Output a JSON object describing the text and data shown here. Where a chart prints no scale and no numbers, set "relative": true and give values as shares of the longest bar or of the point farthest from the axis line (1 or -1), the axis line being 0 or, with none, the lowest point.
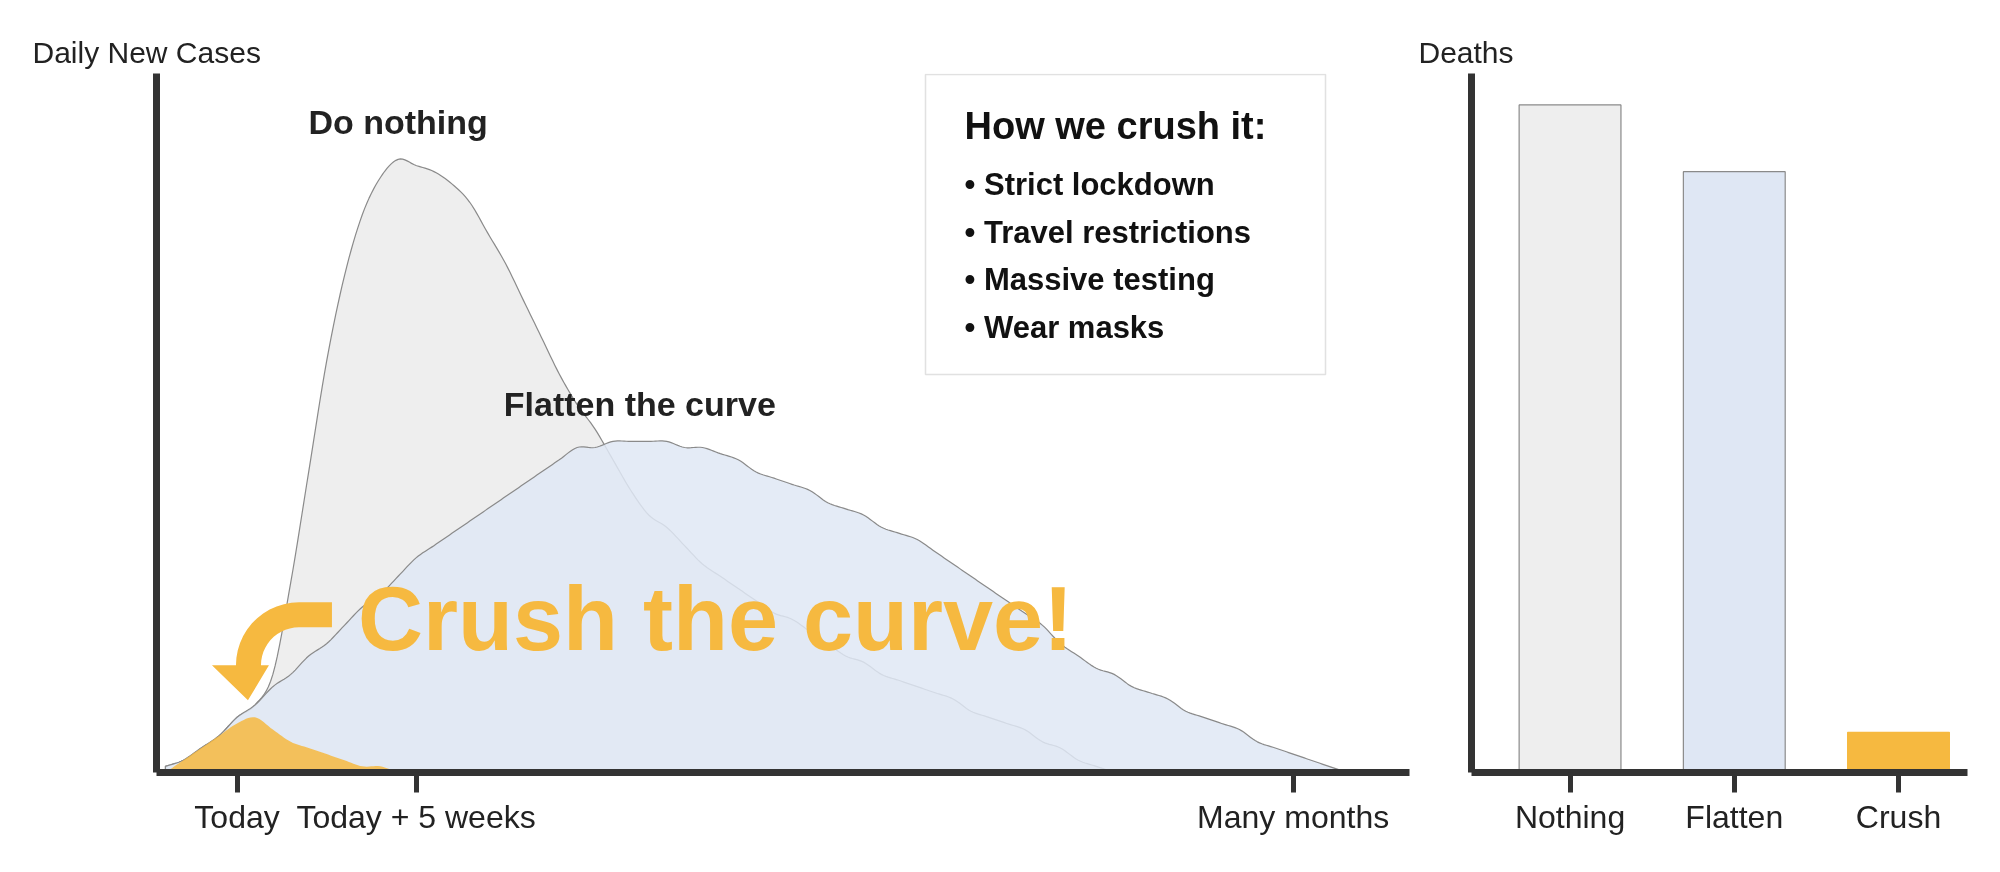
{
  "chart_data": [
    {
      "type": "area",
      "ylabel": "Daily New Cases",
      "relative": true,
      "categories": [
        null,
        null,
        null,
        null,
        "Today",
        null,
        null,
        null,
        null,
        null,
        null,
        null,
        null,
        null,
        "Today + 5 weeks",
        null,
        null,
        null,
        null,
        null,
        null,
        null,
        null,
        null,
        null,
        null,
        null,
        null,
        null,
        null,
        null,
        null,
        null,
        null,
        null,
        null,
        null,
        null,
        null,
        null,
        null,
        null,
        null,
        null,
        null,
        null,
        null,
        null,
        null,
        null,
        null,
        null,
        null,
        null,
        null,
        null,
        null,
        null,
        null,
        null,
        null,
        null,
        null,
        "Many months",
        null,
        null,
        null,
        null,
        null,
        null
      ],
      "series": [
        {
          "name": "Do nothing",
          "color": "#eeeeee",
          "values": [
            0.01,
            0.02,
            0.04,
            0.06,
            0.09,
            0.11,
            0.16,
            0.31,
            0.49,
            0.67,
            0.81,
            0.91,
            0.97,
            1,
            0.99,
            0.98,
            0.96,
            0.93,
            0.88,
            0.83,
            0.77,
            0.71,
            0.65,
            0.6,
            0.56,
            0.51,
            0.46,
            0.42,
            0.4,
            0.37,
            0.34,
            0.32,
            0.3,
            0.28,
            0.26,
            0.25,
            0.23,
            0.21,
            0.19,
            0.18,
            0.16,
            0.15,
            0.14,
            0.13,
            0.12,
            0.1,
            0.09,
            0.08,
            0.07,
            0.05,
            0.04,
            0.02,
            0.01,
            0,
            null,
            null,
            null,
            null,
            null,
            null,
            null,
            null,
            null,
            null,
            null,
            null,
            null,
            null,
            null,
            null
          ]
        },
        {
          "name": "Flatten the curve",
          "color": "#dfe7f4",
          "values": [
            0.01,
            0.02,
            0.04,
            0.06,
            0.09,
            0.11,
            0.14,
            0.16,
            0.19,
            0.21,
            0.24,
            0.27,
            0.29,
            0.32,
            0.35,
            0.37,
            0.39,
            0.41,
            0.43,
            0.45,
            0.47,
            0.49,
            0.51,
            0.53,
            0.53,
            0.54,
            0.54,
            0.54,
            0.54,
            0.53,
            0.53,
            0.52,
            0.51,
            0.49,
            0.48,
            0.47,
            0.46,
            0.44,
            0.43,
            0.42,
            0.4,
            0.39,
            0.38,
            0.36,
            0.34,
            0.32,
            0.3,
            0.28,
            0.26,
            0.24,
            0.21,
            0.19,
            0.17,
            0.16,
            0.14,
            0.13,
            0.12,
            0.1,
            0.09,
            0.08,
            0.07,
            0.05,
            0.04,
            0.03,
            0.02,
            0.01,
            0,
            null,
            null,
            null
          ]
        },
        {
          "name": "Crush the curve!",
          "color": "#f6b940",
          "values": [
            0,
            0.02,
            0.04,
            0.06,
            0.08,
            0.09,
            0.07,
            0.05,
            0.04,
            0.03,
            0.02,
            0.01,
            0.01,
            0,
            null,
            null,
            null,
            null,
            null,
            null,
            null,
            null,
            null,
            null,
            null,
            null,
            null,
            null,
            null,
            null,
            null,
            null,
            null,
            null,
            null,
            null,
            null,
            null,
            null,
            null,
            null,
            null,
            null,
            null,
            null,
            null,
            null,
            null,
            null,
            null,
            null,
            null,
            null,
            null,
            null,
            null,
            null,
            null,
            null,
            null,
            null,
            null,
            null,
            null,
            null,
            null,
            null,
            null,
            null,
            null
          ]
        }
      ],
      "annotations": [
        "How we crush it:",
        "• Strict lockdown",
        "• Travel restrictions",
        "• Massive testing",
        "• Wear masks"
      ]
    },
    {
      "type": "bar",
      "ylabel": "Deaths",
      "relative": true,
      "categories": [
        "Nothing",
        "Flatten",
        "Crush"
      ],
      "values": [
        1,
        0.9,
        0.06
      ],
      "colors": [
        "#eeeeee",
        "#dfe7f4",
        "#f6b940"
      ]
    }
  ]
}
